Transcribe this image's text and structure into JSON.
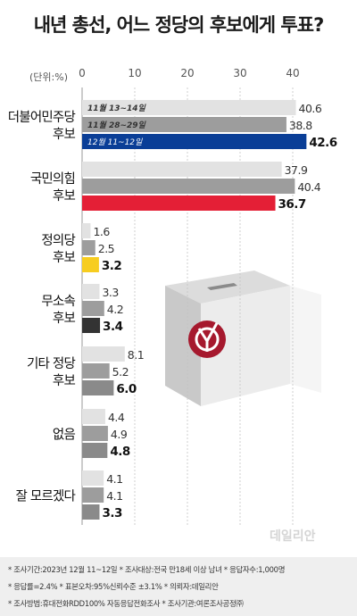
{
  "title": "내년 총선, 어느 정당의 후보에게 투표?",
  "unit_label": "(단위:%)",
  "colors": {
    "gray1": "#e2e2e2",
    "gray2": "#9d9d9d",
    "democratic": "#0a3e97",
    "ppp": "#e41f36",
    "justice": "#f7cd20",
    "independent": "#333333",
    "others": "#8a8a8a",
    "none": "#8a8a8a",
    "unsure": "#8a8a8a"
  },
  "chart_data": {
    "type": "bar",
    "orientation": "horizontal",
    "xlim": [
      0,
      45
    ],
    "x_ticks": [
      0,
      10,
      20,
      30,
      40
    ],
    "series": [
      {
        "name": "11월 13~14일"
      },
      {
        "name": "11월 28~29일"
      },
      {
        "name": "12월 11~12일"
      }
    ],
    "categories": [
      {
        "label": [
          "더불어민주당",
          "후보"
        ],
        "values": [
          40.6,
          38.8,
          42.6
        ],
        "color_key": "democratic",
        "legend_inline": true
      },
      {
        "label": [
          "국민의힘",
          "후보"
        ],
        "values": [
          37.9,
          40.4,
          36.7
        ],
        "color_key": "ppp"
      },
      {
        "label": [
          "정의당",
          "후보"
        ],
        "values": [
          1.6,
          2.5,
          3.2
        ],
        "color_key": "justice"
      },
      {
        "label": [
          "무소속",
          "후보"
        ],
        "values": [
          3.3,
          4.2,
          3.4
        ],
        "color_key": "independent"
      },
      {
        "label": [
          "기타 정당",
          "후보"
        ],
        "values": [
          8.1,
          5.2,
          6.0
        ],
        "color_key": "others"
      },
      {
        "label": [
          "없음"
        ],
        "values": [
          4.4,
          4.9,
          4.8
        ],
        "color_key": "none"
      },
      {
        "label": [
          "잘 모르겠다"
        ],
        "values": [
          4.1,
          4.1,
          3.3
        ],
        "color_key": "unsure"
      }
    ]
  },
  "footer": {
    "line1": "* 조사기간:2023년 12월 11~12일  * 조사대상:전국 만18세 이상 남녀  * 응답자수:1,000명",
    "line2": "* 응답률=2.4%  * 표본오차:95%신뢰수준 ±3.1%  * 의뢰자:데일리안",
    "line3": "* 조사방법:휴대전화RDD100% 자동응답전화조사  * 조사기관:여론조사공정㈜"
  },
  "watermark": "데일리안",
  "ballot_box": {
    "icon": "ballot-box-icon"
  }
}
